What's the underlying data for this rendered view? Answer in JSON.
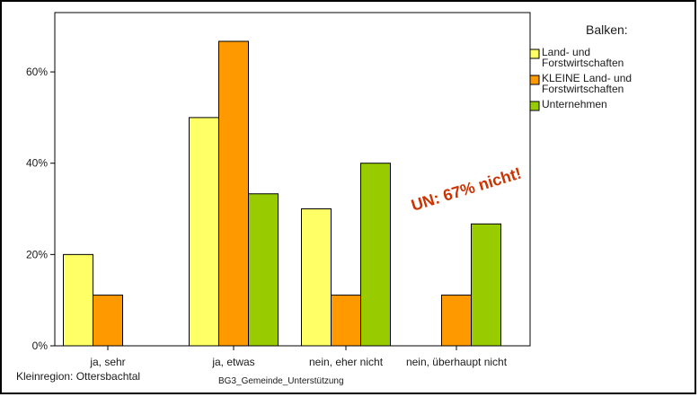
{
  "chart_data": {
    "type": "bar",
    "categories": [
      "ja, sehr",
      "ja, etwas",
      "nein, eher nicht",
      "nein, überhaupt nicht"
    ],
    "series": [
      {
        "name": "Land- und Forstwirtschaften",
        "name_lines": [
          "Land- und",
          "Forstwirtschaften"
        ],
        "color": "#ffff66",
        "values": [
          20,
          50,
          30,
          0
        ]
      },
      {
        "name": "KLEINE Land- und Forstwirtschaften",
        "name_lines": [
          "KLEINE Land- und",
          "Forstwirtschaften"
        ],
        "color": "#ff9900",
        "values": [
          11.1,
          66.7,
          11.1,
          11.1
        ]
      },
      {
        "name": "Unternehmen",
        "name_lines": [
          "Unternehmen"
        ],
        "color": "#99cc00",
        "values": [
          0,
          33.3,
          40,
          26.7
        ]
      }
    ],
    "yticks": [
      "0%",
      "20%",
      "40%",
      "60%"
    ],
    "ytick_values": [
      0,
      20,
      40,
      60
    ],
    "ylim": [
      0,
      73
    ],
    "legend_title": "Balken:",
    "legend_position": "right",
    "xlabel": "BG3_Gemeinde_Unterstützung",
    "footer": "Kleinregion: Ottersbachtal",
    "annotation": {
      "text": "UN: 67% nicht!",
      "color": "#cc3300"
    },
    "grid": false
  }
}
